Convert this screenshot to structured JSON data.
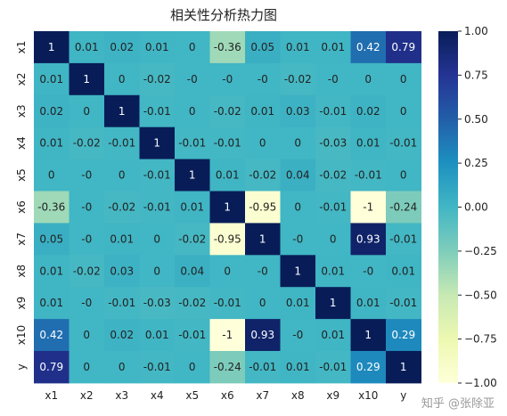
{
  "chart_data": {
    "type": "heatmap",
    "title": "相关性分析热力图",
    "rows": [
      "x1",
      "x2",
      "x3",
      "x4",
      "x5",
      "x6",
      "x7",
      "x8",
      "x9",
      "x10",
      "y"
    ],
    "cols": [
      "x1",
      "x2",
      "x3",
      "x4",
      "x5",
      "x6",
      "x7",
      "x8",
      "x9",
      "x10",
      "y"
    ],
    "labels": [
      [
        "1",
        "0.01",
        "0.02",
        "0.01",
        "0",
        "-0.36",
        "0.05",
        "0.01",
        "0.01",
        "0.42",
        "0.79"
      ],
      [
        "0.01",
        "1",
        "0",
        "-0.02",
        "-0",
        "-0",
        "-0",
        "-0.02",
        "-0",
        "0",
        "0"
      ],
      [
        "0.02",
        "0",
        "1",
        "-0.01",
        "0",
        "-0.02",
        "0.01",
        "0.03",
        "-0.01",
        "0.02",
        "0"
      ],
      [
        "0.01",
        "-0.02",
        "-0.01",
        "1",
        "-0.01",
        "-0.01",
        "0",
        "0",
        "-0.03",
        "0.01",
        "-0.01"
      ],
      [
        "0",
        "-0",
        "0",
        "-0.01",
        "1",
        "0.01",
        "-0.02",
        "0.04",
        "-0.02",
        "-0.01",
        "0"
      ],
      [
        "-0.36",
        "-0",
        "-0.02",
        "-0.01",
        "0.01",
        "1",
        "-0.95",
        "0",
        "-0.01",
        "-1",
        "-0.24"
      ],
      [
        "0.05",
        "-0",
        "0.01",
        "0",
        "-0.02",
        "-0.95",
        "1",
        "-0",
        "0",
        "0.93",
        "-0.01"
      ],
      [
        "0.01",
        "-0.02",
        "0.03",
        "0",
        "0.04",
        "0",
        "-0",
        "1",
        "0.01",
        "-0",
        "0.01"
      ],
      [
        "0.01",
        "-0",
        "-0.01",
        "-0.03",
        "-0.02",
        "-0.01",
        "0",
        "0.01",
        "1",
        "0.01",
        "-0.01"
      ],
      [
        "0.42",
        "0",
        "0.02",
        "0.01",
        "-0.01",
        "-1",
        "0.93",
        "-0",
        "0.01",
        "1",
        "0.29"
      ],
      [
        "0.79",
        "0",
        "0",
        "-0.01",
        "0",
        "-0.24",
        "-0.01",
        "0.01",
        "-0.01",
        "0.29",
        "1"
      ]
    ],
    "colorbar": {
      "min": -1.0,
      "max": 1.0,
      "ticks": [
        1.0,
        0.75,
        0.5,
        0.25,
        0.0,
        -0.25,
        -0.5,
        -0.75,
        -1.0
      ],
      "tick_labels": [
        "1.00",
        "0.75",
        "0.50",
        "0.25",
        "0.00",
        "−0.25",
        "−0.50",
        "−0.75",
        "−1.00"
      ]
    },
    "colormap": "YlGnBu",
    "colormap_stops": [
      "#ffffd9",
      "#edf8b1",
      "#c7e9b4",
      "#7fcdbb",
      "#41b6c4",
      "#1d91c0",
      "#225ea8",
      "#253494",
      "#081d58"
    ]
  },
  "watermark": "知乎 @张除亚"
}
